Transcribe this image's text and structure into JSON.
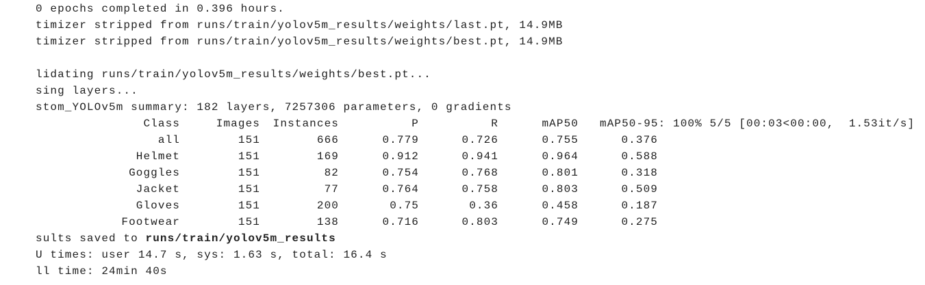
{
  "log_top": [
    "0 epochs completed in 0.396 hours.",
    "timizer stripped from runs/train/yolov5m_results/weights/last.pt, 14.9MB",
    "timizer stripped from runs/train/yolov5m_results/weights/best.pt, 14.9MB"
  ],
  "log_mid": [
    "lidating runs/train/yolov5m_results/weights/best.pt...",
    "sing layers...",
    "stom_YOLOv5m summary: 182 layers, 7257306 parameters, 0 gradients"
  ],
  "table": {
    "header": [
      "Class",
      "Images",
      "Instances",
      "P",
      "R",
      "mAP50",
      "mAP50-95: 100% 5/5 [00:03<00:00,  1.53it/s]"
    ],
    "rows": [
      [
        "all",
        151,
        666,
        0.779,
        0.726,
        0.755,
        0.376
      ],
      [
        "Helmet",
        151,
        169,
        0.912,
        0.941,
        0.964,
        0.588
      ],
      [
        "Goggles",
        151,
        82,
        0.754,
        0.768,
        0.801,
        0.318
      ],
      [
        "Jacket",
        151,
        77,
        0.764,
        0.758,
        0.803,
        0.509
      ],
      [
        "Gloves",
        151,
        200,
        0.75,
        0.36,
        0.458,
        0.187
      ],
      [
        "Footwear",
        151,
        138,
        0.716,
        0.803,
        0.749,
        0.275
      ]
    ]
  },
  "results_saved": {
    "text": "sults saved to",
    "path": "runs/train/yolov5m_results"
  },
  "log_end": [
    "U times: user 14.7 s, sys: 1.63 s, total: 16.4 s",
    "ll time: 24min 40s"
  ]
}
